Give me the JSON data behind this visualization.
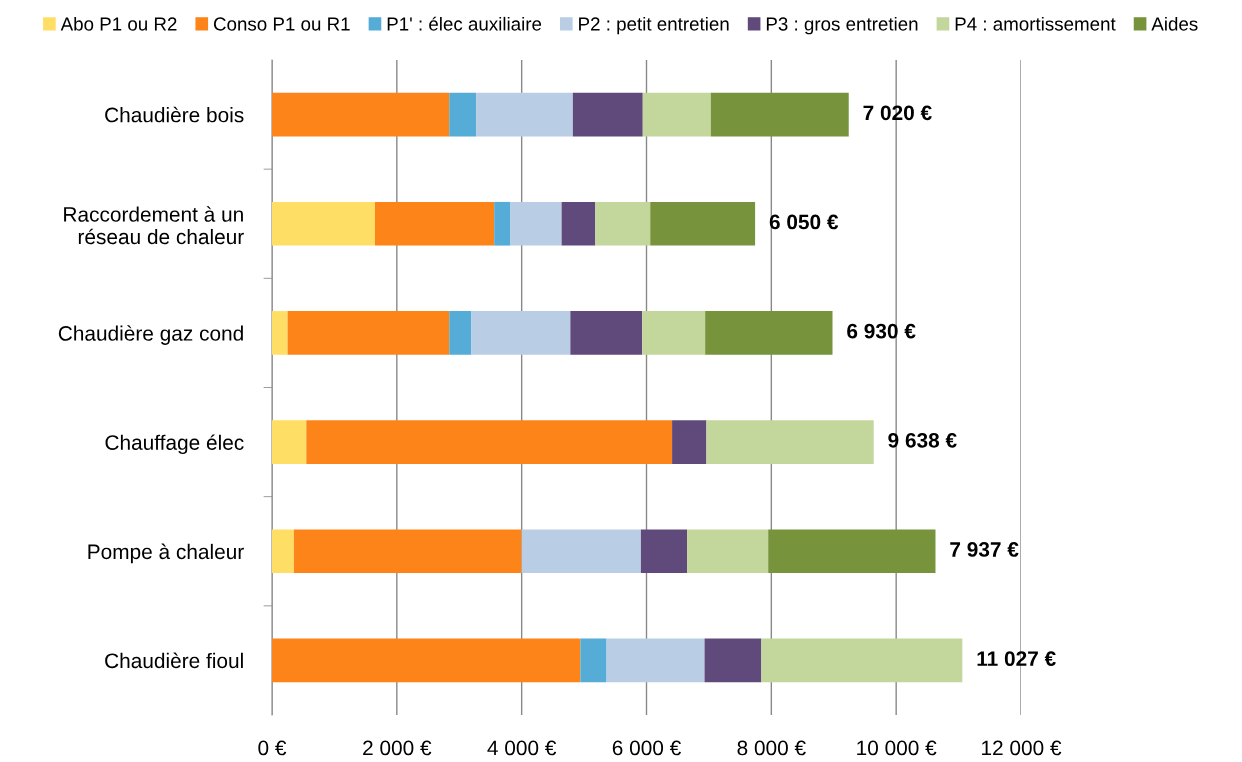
{
  "chart_data": {
    "type": "bar",
    "orientation": "horizontal",
    "stacked": true,
    "categories": [
      "Chaudière bois",
      "Raccordement à un\nréseau de chaleur",
      "Chaudière gaz cond",
      "Chauffage élec",
      "Pompe à chaleur",
      "Chaudière fioul"
    ],
    "series": [
      {
        "name": "Abo P1 ou R2",
        "color": "#ffde66",
        "values": [
          null,
          1650,
          250,
          550,
          350,
          null
        ]
      },
      {
        "name": "Conso P1 ou R1",
        "color": "#fd8419",
        "values": [
          2840,
          1910,
          2590,
          5860,
          3650,
          4940
        ]
      },
      {
        "name": "P1' : élec auxiliaire",
        "color": "#55acd6",
        "values": [
          430,
          260,
          350,
          null,
          null,
          420
        ]
      },
      {
        "name": "P2 : petit entretien",
        "color": "#b9cde5",
        "values": [
          1550,
          820,
          1590,
          null,
          1910,
          1570
        ]
      },
      {
        "name": "P3 : gros entretien",
        "color": "#604a7b",
        "values": [
          1120,
          540,
          1150,
          550,
          740,
          910
        ]
      },
      {
        "name": "P4 : amortissement",
        "color": "#c3d69b",
        "values": [
          1090,
          880,
          1010,
          2680,
          1300,
          3220
        ]
      },
      {
        "name": "Aides",
        "color": "#77933c",
        "values": [
          2210,
          1680,
          2040,
          null,
          2680,
          null
        ]
      }
    ],
    "annotations": [
      {
        "text": "7 020 €",
        "x": 9240,
        "y": "Chaudière bois"
      },
      {
        "text": "6 050 €",
        "x": 7740,
        "y": "Raccordement à un\nréseau de chaleur"
      },
      {
        "text": "6 930 €",
        "x": 8980,
        "y": "Chaudière gaz cond"
      },
      {
        "text": "9 638 €",
        "x": 9640,
        "y": "Chauffage élec"
      },
      {
        "text": "7 937 €",
        "x": 10630,
        "y": "Pompe à chaleur"
      },
      {
        "text": "11 027 €",
        "x": 11060,
        "y": "Chaudière fioul"
      }
    ],
    "xlim": [
      0,
      12000
    ],
    "xticks": [
      {
        "value": 0,
        "label": "0 €"
      },
      {
        "value": 2000,
        "label": "2 000 €"
      },
      {
        "value": 4000,
        "label": "4 000 €"
      },
      {
        "value": 6000,
        "label": "6 000 €"
      },
      {
        "value": 8000,
        "label": "8 000 €"
      },
      {
        "value": 10000,
        "label": "10 000 €"
      },
      {
        "value": 12000,
        "label": "12 000 €"
      }
    ],
    "grid": "x",
    "legend": "top"
  }
}
